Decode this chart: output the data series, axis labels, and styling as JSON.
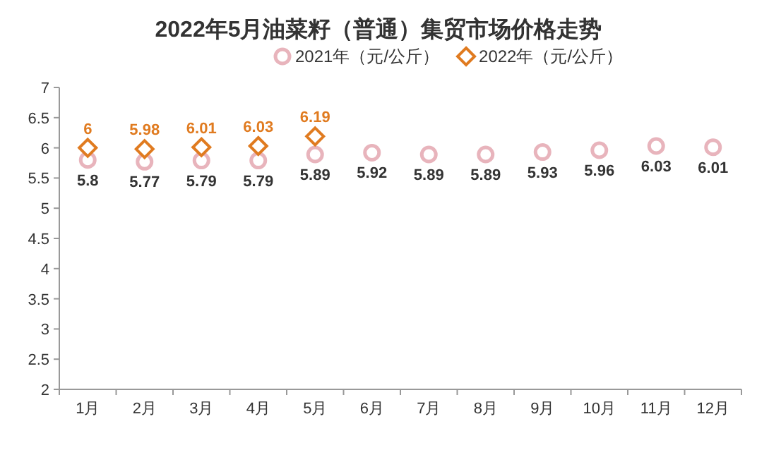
{
  "chart_data": {
    "type": "scatter",
    "title": "2022年5月油菜籽（普通）集贸市场价格走势",
    "categories": [
      "1月",
      "2月",
      "3月",
      "4月",
      "5月",
      "6月",
      "7月",
      "8月",
      "9月",
      "10月",
      "11月",
      "12月"
    ],
    "series": [
      {
        "name": "2021年（元/公斤）",
        "color": "#e8b4bc",
        "marker": "circle",
        "values": [
          5.8,
          5.77,
          5.79,
          5.79,
          5.89,
          5.92,
          5.89,
          5.89,
          5.93,
          5.96,
          6.03,
          6.01
        ]
      },
      {
        "name": "2022年（元/公斤）",
        "color": "#e07b20",
        "marker": "diamond",
        "values": [
          6,
          5.98,
          6.01,
          6.03,
          6.19,
          null,
          null,
          null,
          null,
          null,
          null,
          null
        ]
      }
    ],
    "ylim": [
      2,
      7
    ],
    "yticks": [
      2,
      2.5,
      3,
      3.5,
      4,
      4.5,
      5,
      5.5,
      6,
      6.5,
      7
    ],
    "data_labels": true,
    "legend": "top",
    "grid": false
  }
}
